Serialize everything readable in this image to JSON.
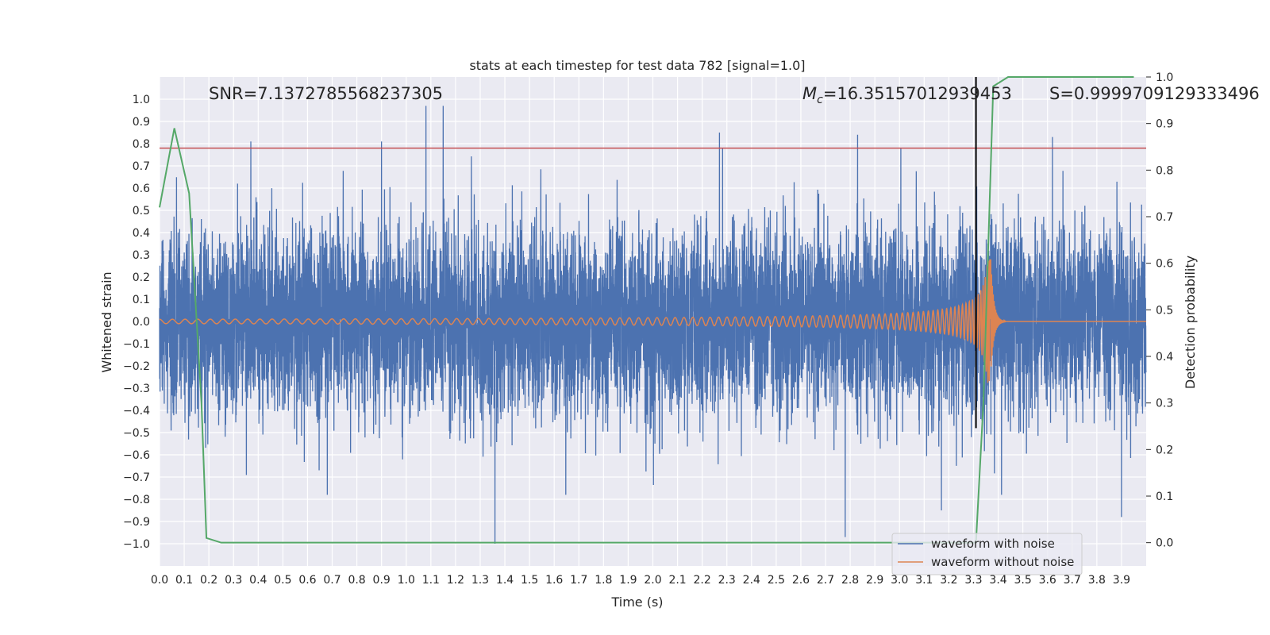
{
  "chart_data": {
    "type": "line",
    "title": "stats at each timestep for test data 782 [signal=1.0]",
    "xlabel": "Time (s)",
    "ylabel": "Whitened strain",
    "y2label": "Detection probability",
    "xlim": [
      0.0,
      4.0
    ],
    "ylim": [
      -1.1,
      1.1
    ],
    "y2lim": [
      -0.05,
      1.0
    ],
    "x_ticks": [
      0.0,
      0.1,
      0.2,
      0.3,
      0.4,
      0.5,
      0.6,
      0.7,
      0.8,
      0.9,
      1.0,
      1.1,
      1.2,
      1.3,
      1.4,
      1.5,
      1.6,
      1.7,
      1.8,
      1.9,
      2.0,
      2.1,
      2.2,
      2.3,
      2.4,
      2.5,
      2.6,
      2.7,
      2.8,
      2.9,
      3.0,
      3.1,
      3.2,
      3.3,
      3.4,
      3.5,
      3.6,
      3.7,
      3.8,
      3.9
    ],
    "y_ticks": [
      1.0,
      0.9,
      0.8,
      0.7,
      0.6,
      0.5,
      0.4,
      0.3,
      0.2,
      0.1,
      0.0,
      -0.1,
      -0.2,
      -0.3,
      -0.4,
      -0.5,
      -0.6,
      -0.7,
      -0.8,
      -0.9,
      -1.0
    ],
    "y2_ticks": [
      1.0,
      0.9,
      0.8,
      0.7,
      0.6,
      0.5,
      0.4,
      0.3,
      0.2,
      0.1,
      0.0
    ],
    "grid": true,
    "legend_position": "bottom-right",
    "annotations": {
      "snr": "SNR=7.1372785568237305",
      "mc_symbol": "M",
      "mc_subscript": "c",
      "mc_value": "=16.35157012939453",
      "s": "S=0.9999709129333496"
    },
    "series": [
      {
        "name": "waveform with noise",
        "color": "#4c72b0",
        "axis": "left",
        "style": "noise",
        "sample_rate": 2048,
        "amplitude_std": 0.21,
        "notable_peaks": [
          {
            "x": 0.37,
            "y": 0.81
          },
          {
            "x": 0.9,
            "y": 0.81
          },
          {
            "x": 1.08,
            "y": 0.97
          },
          {
            "x": 1.15,
            "y": 0.97
          },
          {
            "x": 2.27,
            "y": 0.85
          },
          {
            "x": 2.83,
            "y": 0.84
          },
          {
            "x": 3.62,
            "y": 0.83
          },
          {
            "x": 1.36,
            "y": -1.0
          },
          {
            "x": 2.78,
            "y": -0.97
          },
          {
            "x": 3.17,
            "y": -0.85
          },
          {
            "x": 3.9,
            "y": -0.88
          }
        ]
      },
      {
        "name": "waveform without noise",
        "color": "#dd8452",
        "axis": "left",
        "style": "chirp",
        "merger_time": 3.37,
        "ringdown_end": 3.43,
        "start_amplitude": 0.01,
        "peak_amplitude": 0.28
      },
      {
        "name": "detection probability",
        "color": "#55a868",
        "axis": "right",
        "x": [
          0.0,
          0.06,
          0.12,
          0.17,
          0.19,
          0.25,
          3.31,
          3.34,
          3.38,
          3.44,
          3.95
        ],
        "y": [
          0.72,
          0.89,
          0.75,
          0.3,
          0.01,
          0.0,
          0.0,
          0.3,
          0.98,
          1.0,
          1.0
        ]
      }
    ],
    "threshold_line": {
      "y": 0.78,
      "axis": "left",
      "color": "#c44e52"
    },
    "event_line": {
      "x": 3.31,
      "color": "#000000"
    }
  },
  "legend": {
    "items": [
      {
        "label": "waveform with noise",
        "color": "#4c72b0"
      },
      {
        "label": "waveform without noise",
        "color": "#dd8452"
      }
    ]
  },
  "colors": {
    "plot_bg": "#eaeaf2",
    "grid": "#ffffff"
  }
}
